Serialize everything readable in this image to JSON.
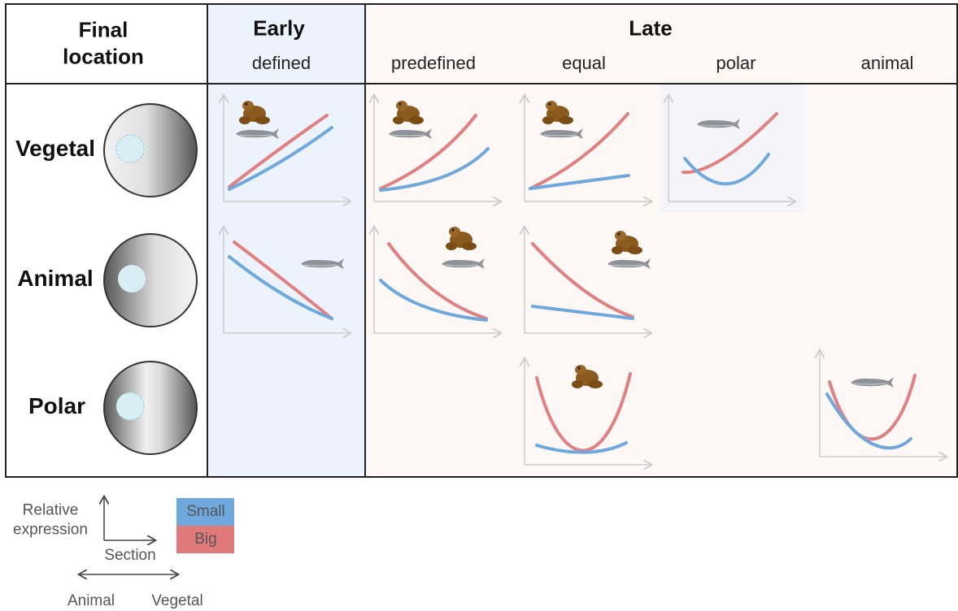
{
  "header": {
    "final_location": "Final location",
    "early": {
      "title": "Early",
      "columns": [
        "defined"
      ]
    },
    "late": {
      "title": "Late",
      "columns": [
        "predefined",
        "equal",
        "polar",
        "animal"
      ]
    }
  },
  "rows": [
    "Vegetal",
    "Animal",
    "Polar"
  ],
  "legend": {
    "y_axis": "Relative expression",
    "x_axis": "Section",
    "series": [
      "Small",
      "Big"
    ],
    "direction": [
      "Animal",
      "Vegetal"
    ]
  }
}
